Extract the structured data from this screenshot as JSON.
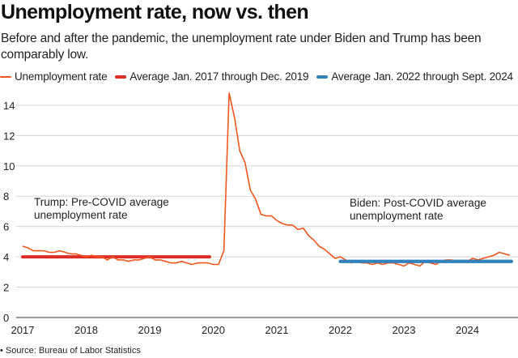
{
  "title": "Unemployment rate, now vs. then",
  "subtitle": "Before and after the pandemic, the unemployment rate under Biden and Trump has been comparably low.",
  "source": "• Source: Bureau of Labor Statistics",
  "chart_data": {
    "type": "line",
    "title": "Unemployment rate, now vs. then",
    "xlabel": "",
    "ylabel": "",
    "ylim": [
      0,
      15
    ],
    "yticks": [
      0,
      2,
      4,
      6,
      8,
      10,
      12,
      14
    ],
    "xticks": [
      "2017",
      "2018",
      "2019",
      "2020",
      "2021",
      "2022",
      "2023",
      "2024"
    ],
    "x_start": "2017-01",
    "grid": true,
    "legend_position": "top-left",
    "series": [
      {
        "name": "Unemployment rate",
        "color": "#f0561d",
        "values": [
          4.7,
          4.6,
          4.4,
          4.4,
          4.4,
          4.3,
          4.3,
          4.4,
          4.3,
          4.2,
          4.2,
          4.1,
          4.0,
          4.1,
          4.0,
          4.0,
          3.8,
          4.0,
          3.8,
          3.8,
          3.7,
          3.8,
          3.8,
          3.9,
          4.0,
          3.8,
          3.8,
          3.7,
          3.6,
          3.6,
          3.7,
          3.6,
          3.5,
          3.6,
          3.6,
          3.6,
          3.5,
          3.5,
          4.4,
          14.8,
          13.2,
          11.0,
          10.2,
          8.4,
          7.8,
          6.8,
          6.7,
          6.7,
          6.4,
          6.2,
          6.1,
          6.1,
          5.8,
          5.9,
          5.4,
          5.1,
          4.7,
          4.5,
          4.2,
          3.9,
          4.0,
          3.8,
          3.6,
          3.7,
          3.6,
          3.6,
          3.5,
          3.6,
          3.5,
          3.6,
          3.6,
          3.5,
          3.4,
          3.6,
          3.5,
          3.4,
          3.7,
          3.6,
          3.5,
          3.7,
          3.8,
          3.8,
          3.7,
          3.7,
          3.7,
          3.9,
          3.8,
          3.9,
          4.0,
          4.1,
          4.3,
          4.2,
          4.1
        ]
      },
      {
        "name": "Average Jan. 2017 through Dec. 2019",
        "color": "#de2d26",
        "value": 4.0,
        "from": "2017-01",
        "to": "2019-12"
      },
      {
        "name": "Average Jan. 2022 through Sept. 2024",
        "color": "#3182bd",
        "value": 3.7,
        "from": "2022-01",
        "to": "2024-09"
      }
    ],
    "annotations": [
      {
        "text": "Trump: Pre-COVID average unemployment rate",
        "lines": [
          "Trump: Pre-COVID average",
          "unemployment rate"
        ]
      },
      {
        "text": "Biden: Post-COVID average unemployment rate",
        "lines": [
          "Biden: Post-COVID average",
          "unemployment rate"
        ]
      }
    ]
  }
}
